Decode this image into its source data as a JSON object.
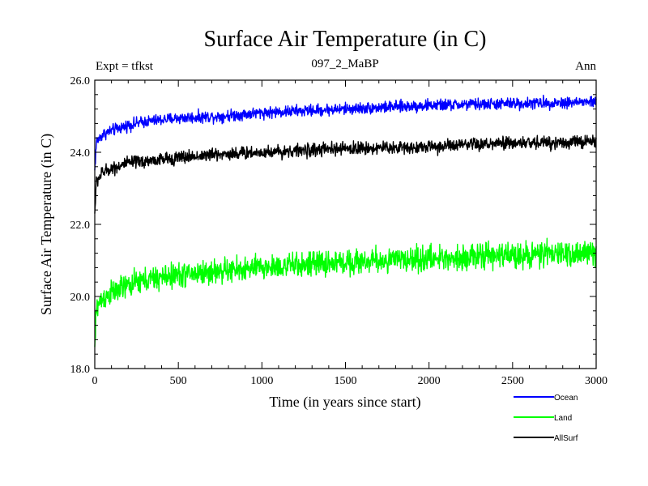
{
  "chart_data": {
    "type": "line",
    "title": "Surface Air Temperature (in C)",
    "subtitle_left": "Expt = tfkst",
    "subtitle_center": "097_2_MaBP",
    "subtitle_right": "Ann",
    "xlabel": "Time (in years since start)",
    "ylabel": "Surface Air Temperature (in C)",
    "xlim": [
      0,
      3000
    ],
    "ylim": [
      18.0,
      26.0
    ],
    "x_ticks": [
      0,
      500,
      1000,
      1500,
      2000,
      2500,
      3000
    ],
    "x_tick_labels": [
      "0",
      "500",
      "1000",
      "1500",
      "2000",
      "2500",
      "3000"
    ],
    "y_ticks": [
      18.0,
      20.0,
      22.0,
      24.0,
      26.0
    ],
    "y_tick_labels": [
      "18.0",
      "20.0",
      "22.0",
      "24.0",
      "26.0"
    ],
    "legend_position": "bottom-right",
    "series": [
      {
        "name": "Ocean",
        "color": "#0000ff",
        "noise": 0.08,
        "key_points": [
          [
            0,
            23.5
          ],
          [
            10,
            24.3
          ],
          [
            50,
            24.5
          ],
          [
            100,
            24.6
          ],
          [
            200,
            24.75
          ],
          [
            300,
            24.85
          ],
          [
            500,
            24.95
          ],
          [
            750,
            25.0
          ],
          [
            1000,
            25.1
          ],
          [
            1500,
            25.2
          ],
          [
            2000,
            25.3
          ],
          [
            2500,
            25.35
          ],
          [
            3000,
            25.4
          ]
        ]
      },
      {
        "name": "Land",
        "color": "#00ff00",
        "noise": 0.17,
        "key_points": [
          [
            0,
            18.6
          ],
          [
            10,
            19.7
          ],
          [
            50,
            19.95
          ],
          [
            100,
            20.1
          ],
          [
            200,
            20.3
          ],
          [
            300,
            20.45
          ],
          [
            500,
            20.6
          ],
          [
            750,
            20.7
          ],
          [
            1000,
            20.8
          ],
          [
            1500,
            20.95
          ],
          [
            2000,
            21.05
          ],
          [
            2500,
            21.15
          ],
          [
            3000,
            21.2
          ]
        ]
      },
      {
        "name": "AllSurf",
        "color": "#000000",
        "noise": 0.09,
        "key_points": [
          [
            0,
            22.3
          ],
          [
            10,
            23.2
          ],
          [
            50,
            23.45
          ],
          [
            100,
            23.55
          ],
          [
            200,
            23.7
          ],
          [
            300,
            23.75
          ],
          [
            500,
            23.85
          ],
          [
            750,
            23.95
          ],
          [
            1000,
            24.0
          ],
          [
            1500,
            24.1
          ],
          [
            2000,
            24.15
          ],
          [
            2500,
            24.25
          ],
          [
            3000,
            24.3
          ]
        ]
      }
    ]
  }
}
